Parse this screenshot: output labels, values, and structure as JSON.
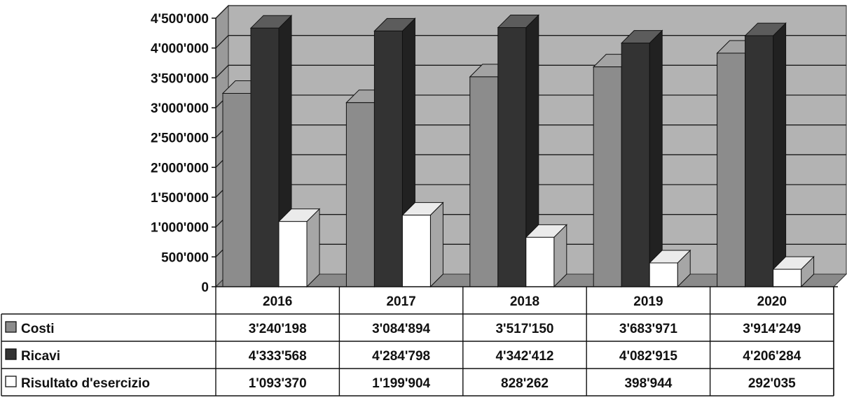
{
  "chart_data": {
    "type": "bar",
    "categories": [
      "2016",
      "2017",
      "2018",
      "2019",
      "2020"
    ],
    "series": [
      {
        "name": "Costi",
        "values": [
          3240198,
          3084894,
          3517150,
          3683971,
          3914249
        ],
        "color": "#8c8c8c",
        "labels": [
          "3'240'198",
          "3'084'894",
          "3'517'150",
          "3'683'971",
          "3'914'249"
        ]
      },
      {
        "name": "Ricavi",
        "values": [
          4333568,
          4284798,
          4342412,
          4082915,
          4206284
        ],
        "color": "#333333",
        "labels": [
          "4'333'568",
          "4'284'798",
          "4'342'412",
          "4'082'915",
          "4'206'284"
        ]
      },
      {
        "name": "Risultato d'esercizio",
        "values": [
          1093370,
          1199904,
          828262,
          398944,
          292035
        ],
        "color": "#ffffff",
        "labels": [
          "1'093'370",
          "1'199'904",
          "828'262",
          "398'944",
          "292'035"
        ]
      }
    ],
    "ylim": [
      0,
      4500000
    ],
    "yticks": [
      0,
      500000,
      1000000,
      1500000,
      2000000,
      2500000,
      3000000,
      3500000,
      4000000,
      4500000
    ],
    "ytick_labels": [
      "0",
      "500'000",
      "1'000'000",
      "1'500'000",
      "2'000'000",
      "2'500'000",
      "3'000'000",
      "3'500'000",
      "4'000'000",
      "4'500'000"
    ],
    "grid": true,
    "legend": "data-table",
    "background_color": "#b3b3b3"
  }
}
